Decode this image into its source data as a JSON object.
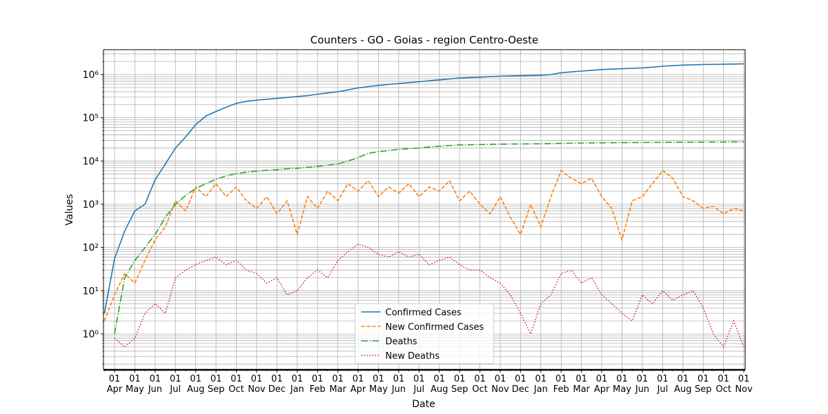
{
  "chart_data": {
    "type": "line",
    "title": "Counters - GO - Goias - region Centro-Oeste",
    "xlabel": "Date",
    "ylabel": "Values",
    "log_y": true,
    "grid": true,
    "legend": "lower center",
    "x": [
      null,
      "01\nApr",
      null,
      "01\nMay",
      null,
      "01\nJun",
      null,
      "01\nJul",
      null,
      "01\nAug",
      null,
      "01\nSep",
      null,
      "01\nOct",
      null,
      "01\nNov",
      null,
      "01\nDec",
      null,
      "01\nJan",
      null,
      "01\nFeb",
      null,
      "01\nMar",
      null,
      "01\nApr",
      null,
      "01\nMay",
      null,
      "01\nJun",
      null,
      "01\nJul",
      null,
      "01\nAug",
      null,
      "01\nSep",
      null,
      "01\nOct",
      null,
      "01\nNov",
      null,
      "01\nDec",
      null,
      "01\nJan",
      null,
      "01\nFeb",
      null,
      "01\nMar",
      null,
      "01\nApr",
      null,
      "01\nMay",
      null,
      "01\nJun",
      null,
      "01\nJul",
      null,
      "01\nAug",
      null,
      "01\nSep",
      null,
      "01\nOct",
      null,
      "01\nNov"
    ],
    "ylim": [
      0.148,
      3750000
    ],
    "yticks": [
      {
        "value": 1,
        "label": "10⁰"
      },
      {
        "value": 10,
        "label": "10¹"
      },
      {
        "value": 100,
        "label": "10²"
      },
      {
        "value": 1000,
        "label": "10³"
      },
      {
        "value": 10000,
        "label": "10⁴"
      },
      {
        "value": 100000,
        "label": "10⁵"
      },
      {
        "value": 1000000,
        "label": "10⁶"
      }
    ],
    "series": [
      {
        "name": "Confirmed Cases",
        "color": "#1f77b4",
        "style": "solid",
        "values": [
          3,
          55,
          240,
          700,
          1000,
          3700,
          8500,
          20000,
          36000,
          70000,
          110000,
          140000,
          175000,
          215000,
          240000,
          255000,
          268000,
          280000,
          295000,
          310000,
          325000,
          350000,
          375000,
          400000,
          440000,
          490000,
          525000,
          560000,
          590000,
          620000,
          650000,
          680000,
          715000,
          750000,
          790000,
          830000,
          850000,
          870000,
          890000,
          910000,
          925000,
          940000,
          950000,
          960000,
          1000000,
          1100000,
          1150000,
          1200000,
          1250000,
          1300000,
          1330000,
          1360000,
          1390000,
          1420000,
          1480000,
          1550000,
          1600000,
          1650000,
          1680000,
          1700000,
          1715000,
          1730000,
          1745000,
          1760000
        ]
      },
      {
        "name": "New Confirmed Cases",
        "color": "#ff7f0e",
        "style": "dashed",
        "values": [
          2,
          8,
          25,
          15,
          50,
          150,
          300,
          1200,
          700,
          2500,
          1500,
          3000,
          1500,
          2500,
          1200,
          800,
          1500,
          600,
          1200,
          200,
          1500,
          800,
          2000,
          1200,
          3000,
          2000,
          3500,
          1500,
          2500,
          1800,
          3000,
          1500,
          2500,
          2000,
          3500,
          1200,
          2000,
          1000,
          600,
          1500,
          500,
          200,
          1000,
          300,
          1500,
          6000,
          4000,
          3000,
          4000,
          1500,
          800,
          150,
          1200,
          1500,
          3000,
          6000,
          4000,
          1500,
          1200,
          800,
          900,
          600,
          800,
          700
        ]
      },
      {
        "name": "Deaths",
        "color": "#2ca02c",
        "style": "dashdot",
        "values": [
          null,
          1,
          20,
          50,
          100,
          200,
          500,
          1000,
          1600,
          2300,
          3000,
          3800,
          4500,
          5100,
          5500,
          5800,
          6100,
          6300,
          6600,
          6800,
          7100,
          7500,
          8000,
          8500,
          10000,
          12000,
          15000,
          16500,
          17500,
          18500,
          19300,
          20000,
          21000,
          22000,
          22800,
          23500,
          23800,
          24000,
          24300,
          24500,
          24700,
          24800,
          24900,
          25000,
          25200,
          25500,
          25800,
          26000,
          26200,
          26300,
          26500,
          26600,
          26700,
          26800,
          26900,
          27000,
          27100,
          27200,
          27300,
          27400,
          27500,
          27500,
          27600,
          27600
        ]
      },
      {
        "name": "New Deaths",
        "color": "#d62728",
        "style": "dotted",
        "values": [
          null,
          0.8,
          0.5,
          0.8,
          3,
          5,
          3,
          20,
          30,
          40,
          50,
          60,
          40,
          50,
          30,
          25,
          15,
          20,
          8,
          10,
          20,
          30,
          20,
          50,
          80,
          120,
          100,
          70,
          60,
          80,
          60,
          70,
          40,
          50,
          60,
          40,
          30,
          30,
          20,
          15,
          8,
          3,
          1,
          5,
          8,
          25,
          30,
          15,
          20,
          8,
          5,
          3,
          2,
          8,
          5,
          10,
          6,
          8,
          10,
          4,
          1,
          0.5,
          2,
          0.5
        ]
      }
    ]
  }
}
